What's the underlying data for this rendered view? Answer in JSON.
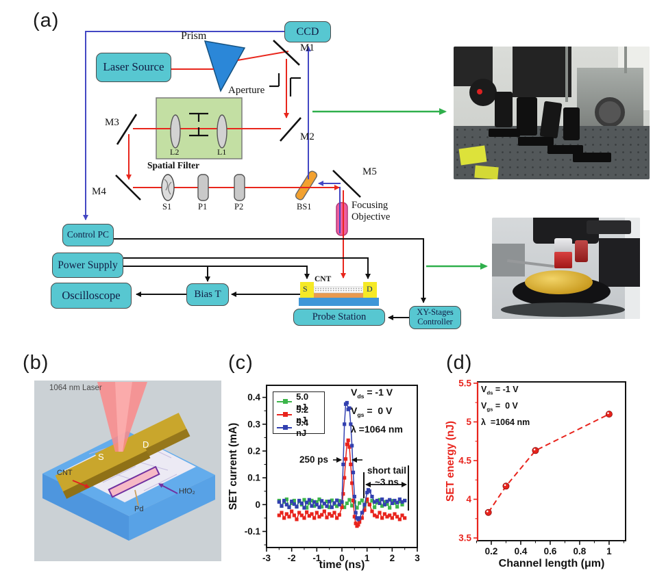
{
  "panel_labels": {
    "a": "(a)",
    "b": "(b)",
    "c": "(c)",
    "d": "(d)"
  },
  "diagram": {
    "boxes": {
      "ccd": "CCD",
      "laser_source": "Laser Source",
      "control_pc": "Control PC",
      "power_supply": "Power Supply",
      "oscilloscope": "Oscilloscope",
      "bias_t": "Bias T",
      "probe_station": "Probe Station",
      "xy_stages_line1": "XY-Stages",
      "xy_stages_line2": "Controller"
    },
    "labels": {
      "prism": "Prism",
      "aperture": "Aperture",
      "m1": "M1",
      "m2": "M2",
      "m3": "M3",
      "m4": "M4",
      "m5": "M5",
      "l1": "L1",
      "l2": "L2",
      "spatial_filter": "Spatial Filter",
      "s1": "S1",
      "p1": "P1",
      "p2": "P2",
      "bs1": "BS1",
      "focusing_line1": "Focusing",
      "focusing_line2": "Objective",
      "cnt": "CNT",
      "source": "S",
      "drain": "D"
    }
  },
  "panel_b": {
    "laser_label": "1064 nm Laser",
    "source": "S",
    "drain": "D",
    "cnt": "CNT",
    "hfo2": "HfO₂",
    "pd": "Pd"
  },
  "chart_data": [
    {
      "id": "c",
      "type": "line",
      "title": "",
      "xlabel": "time (ns)",
      "ylabel": "SET current (mA)",
      "xlim": [
        -3,
        3
      ],
      "ylim": [
        -0.16,
        0.445
      ],
      "xticks": [
        -3,
        -2,
        -1,
        0,
        1,
        2,
        3
      ],
      "xtick_labels": [
        "-3",
        "-2",
        "-1",
        "0",
        "1",
        "2",
        "3"
      ],
      "yticks": [
        -0.1,
        0,
        0.1,
        0.2,
        0.3,
        0.4
      ],
      "ytick_labels": [
        "-0.1",
        "0",
        "0.1",
        "0.2",
        "0.3",
        "0.4"
      ],
      "xminor": [
        -2.5,
        -1.5,
        -0.5,
        0.5,
        1.5,
        2.5
      ],
      "yminor": [
        -0.15,
        -0.05,
        0.05,
        0.15,
        0.25,
        0.35
      ],
      "grid": false,
      "legend_position": "top-left",
      "legend": [
        "5.0 nJ",
        "5.2 nJ",
        "5.4 nJ"
      ],
      "annotations": {
        "vds_base": "V",
        "vds_sub": "ds",
        "vds_rest": " = -1 V",
        "vgs_base": "V",
        "vgs_sub": "gs",
        "vgs_rest": " =  0 V",
        "lambda": "λ =1064 nm",
        "pulse_width": "250 ps",
        "tail_line1": "short tail",
        "tail_line2": "~3 ns"
      },
      "series": [
        {
          "name": "5.0 nJ",
          "color": "#3cb54a",
          "marker": "square",
          "points": [
            [
              -2.5,
              0.015
            ],
            [
              -2.4,
              -0.005
            ],
            [
              -2.3,
              0.01
            ],
            [
              -2.2,
              0.02
            ],
            [
              -2.1,
              -0.01
            ],
            [
              -2.0,
              0.005
            ],
            [
              -1.9,
              0.015
            ],
            [
              -1.8,
              -0.008
            ],
            [
              -1.7,
              0.012
            ],
            [
              -1.6,
              0.0
            ],
            [
              -1.5,
              0.018
            ],
            [
              -1.4,
              -0.012
            ],
            [
              -1.3,
              0.006
            ],
            [
              -1.2,
              0.015
            ],
            [
              -1.1,
              -0.005
            ],
            [
              -1.0,
              0.01
            ],
            [
              -0.9,
              0.02
            ],
            [
              -0.8,
              -0.008
            ],
            [
              -0.7,
              0.004
            ],
            [
              -0.6,
              0.012
            ],
            [
              -0.5,
              -0.01
            ],
            [
              -0.4,
              0.016
            ],
            [
              -0.3,
              0.002
            ],
            [
              -0.2,
              -0.006
            ],
            [
              -0.1,
              0.014
            ],
            [
              0.0,
              0.008
            ],
            [
              0.1,
              -0.01
            ],
            [
              0.2,
              0.005
            ],
            [
              0.3,
              0.018
            ],
            [
              0.4,
              -0.004
            ],
            [
              0.5,
              0.01
            ],
            [
              0.6,
              -0.012
            ],
            [
              0.7,
              0.006
            ],
            [
              0.8,
              0.016
            ],
            [
              0.9,
              -0.006
            ],
            [
              1.0,
              0.012
            ],
            [
              1.1,
              0.0
            ],
            [
              1.2,
              0.015
            ],
            [
              1.3,
              -0.01
            ],
            [
              1.4,
              0.008
            ],
            [
              1.5,
              0.018
            ],
            [
              1.6,
              -0.005
            ],
            [
              1.7,
              0.01
            ],
            [
              1.8,
              0.002
            ],
            [
              1.9,
              -0.012
            ],
            [
              2.0,
              0.014
            ],
            [
              2.1,
              0.006
            ],
            [
              2.2,
              -0.008
            ],
            [
              2.3,
              0.012
            ],
            [
              2.4,
              0.0
            ],
            [
              2.5,
              0.015
            ]
          ]
        },
        {
          "name": "5.2 nJ",
          "color": "#e8231c",
          "marker": "square",
          "points": [
            [
              -2.5,
              -0.04
            ],
            [
              -2.4,
              -0.03
            ],
            [
              -2.3,
              -0.05
            ],
            [
              -2.2,
              -0.035
            ],
            [
              -2.1,
              -0.045
            ],
            [
              -2.0,
              -0.025
            ],
            [
              -1.9,
              -0.04
            ],
            [
              -1.8,
              -0.055
            ],
            [
              -1.7,
              -0.03
            ],
            [
              -1.6,
              -0.04
            ],
            [
              -1.5,
              -0.05
            ],
            [
              -1.4,
              -0.028
            ],
            [
              -1.3,
              -0.042
            ],
            [
              -1.2,
              -0.035
            ],
            [
              -1.1,
              -0.05
            ],
            [
              -1.0,
              -0.03
            ],
            [
              -0.9,
              -0.045
            ],
            [
              -0.8,
              -0.038
            ],
            [
              -0.7,
              -0.025
            ],
            [
              -0.6,
              -0.048
            ],
            [
              -0.5,
              -0.035
            ],
            [
              -0.4,
              -0.042
            ],
            [
              -0.3,
              -0.03
            ],
            [
              -0.2,
              -0.05
            ],
            [
              -0.1,
              -0.038
            ],
            [
              0.0,
              -0.01
            ],
            [
              0.05,
              0.04
            ],
            [
              0.1,
              0.1
            ],
            [
              0.15,
              0.17
            ],
            [
              0.2,
              0.225
            ],
            [
              0.25,
              0.24
            ],
            [
              0.3,
              0.215
            ],
            [
              0.35,
              0.15
            ],
            [
              0.4,
              0.08
            ],
            [
              0.45,
              0.015
            ],
            [
              0.5,
              -0.045
            ],
            [
              0.55,
              -0.07
            ],
            [
              0.6,
              -0.08
            ],
            [
              0.65,
              -0.075
            ],
            [
              0.7,
              -0.065
            ],
            [
              0.8,
              -0.05
            ],
            [
              0.9,
              -0.02
            ],
            [
              1.0,
              0.02
            ],
            [
              1.1,
              0.0
            ],
            [
              1.2,
              -0.025
            ],
            [
              1.3,
              -0.04
            ],
            [
              1.4,
              -0.045
            ],
            [
              1.5,
              -0.03
            ],
            [
              1.6,
              -0.05
            ],
            [
              1.7,
              -0.035
            ],
            [
              1.8,
              -0.045
            ],
            [
              1.9,
              -0.04
            ],
            [
              2.0,
              -0.05
            ],
            [
              2.1,
              -0.035
            ],
            [
              2.2,
              -0.045
            ],
            [
              2.3,
              -0.055
            ],
            [
              2.4,
              -0.04
            ],
            [
              2.5,
              -0.05
            ]
          ]
        },
        {
          "name": "5.4 nJ",
          "color": "#3240b0",
          "marker": "square",
          "points": [
            [
              -2.5,
              0.01
            ],
            [
              -2.4,
              -0.005
            ],
            [
              -2.3,
              0.015
            ],
            [
              -2.2,
              0.0
            ],
            [
              -2.1,
              -0.01
            ],
            [
              -2.0,
              0.012
            ],
            [
              -1.9,
              0.002
            ],
            [
              -1.8,
              -0.008
            ],
            [
              -1.7,
              0.015
            ],
            [
              -1.6,
              0.005
            ],
            [
              -1.5,
              -0.012
            ],
            [
              -1.4,
              0.008
            ],
            [
              -1.3,
              0.018
            ],
            [
              -1.2,
              -0.005
            ],
            [
              -1.1,
              0.01
            ],
            [
              -1.0,
              0.0
            ],
            [
              -0.9,
              -0.01
            ],
            [
              -0.8,
              0.014
            ],
            [
              -0.7,
              0.004
            ],
            [
              -0.6,
              -0.006
            ],
            [
              -0.5,
              0.012
            ],
            [
              -0.4,
              -0.01
            ],
            [
              -0.3,
              0.006
            ],
            [
              -0.2,
              0.016
            ],
            [
              -0.1,
              0.0
            ],
            [
              0.0,
              0.01
            ],
            [
              0.05,
              0.15
            ],
            [
              0.1,
              0.3
            ],
            [
              0.15,
              0.375
            ],
            [
              0.2,
              0.38
            ],
            [
              0.25,
              0.355
            ],
            [
              0.3,
              0.36
            ],
            [
              0.35,
              0.3
            ],
            [
              0.4,
              0.22
            ],
            [
              0.45,
              0.12
            ],
            [
              0.5,
              0.03
            ],
            [
              0.55,
              -0.03
            ],
            [
              0.6,
              -0.05
            ],
            [
              0.65,
              -0.055
            ],
            [
              0.7,
              -0.05
            ],
            [
              0.8,
              -0.03
            ],
            [
              0.9,
              0.0
            ],
            [
              1.0,
              0.045
            ],
            [
              1.05,
              0.055
            ],
            [
              1.1,
              0.05
            ],
            [
              1.2,
              0.03
            ],
            [
              1.3,
              0.01
            ],
            [
              1.4,
              0.015
            ],
            [
              1.5,
              0.005
            ],
            [
              1.6,
              0.02
            ],
            [
              1.7,
              0.0
            ],
            [
              1.8,
              0.012
            ],
            [
              1.9,
              0.018
            ],
            [
              2.0,
              0.005
            ],
            [
              2.1,
              0.015
            ],
            [
              2.2,
              0.008
            ],
            [
              2.3,
              0.02
            ],
            [
              2.4,
              0.01
            ],
            [
              2.5,
              0.015
            ]
          ]
        }
      ]
    },
    {
      "id": "d",
      "type": "scatter",
      "title": "",
      "xlabel": "Channel length (μm)",
      "ylabel": "SET energy (nJ)",
      "axis_color": "#e8231c",
      "xlim": [
        0.107,
        1.112
      ],
      "ylim": [
        3.465,
        5.517
      ],
      "xticks": [
        0.2,
        0.4,
        0.6,
        0.8,
        1
      ],
      "xtick_labels": [
        "0.2",
        "0.4",
        "0.6",
        "0.8",
        "1"
      ],
      "yticks": [
        3.5,
        4,
        4.5,
        5,
        5.5
      ],
      "ytick_labels": [
        "3.5",
        "4",
        "4.5",
        "5",
        "5.5"
      ],
      "xminor": [
        0.1,
        0.3,
        0.5,
        0.7,
        0.9,
        1.1
      ],
      "yminor": [
        3.75,
        4.25,
        4.75,
        5.25
      ],
      "grid": false,
      "annotations": {
        "vds_base": "V",
        "vds_sub": "ds",
        "vds_rest": " = -1 V",
        "vgs_base": "V",
        "vgs_sub": "gs",
        "vgs_rest": " =  0 V",
        "lambda": "λ  =1064 nm"
      },
      "series": [
        {
          "name": "SET energy",
          "color": "#e8231c",
          "marker": "sphere",
          "dashed": true,
          "points": [
            [
              0.18,
              3.83
            ],
            [
              0.3,
              4.17
            ],
            [
              0.5,
              4.63
            ],
            [
              1.0,
              5.1
            ]
          ]
        }
      ]
    }
  ]
}
